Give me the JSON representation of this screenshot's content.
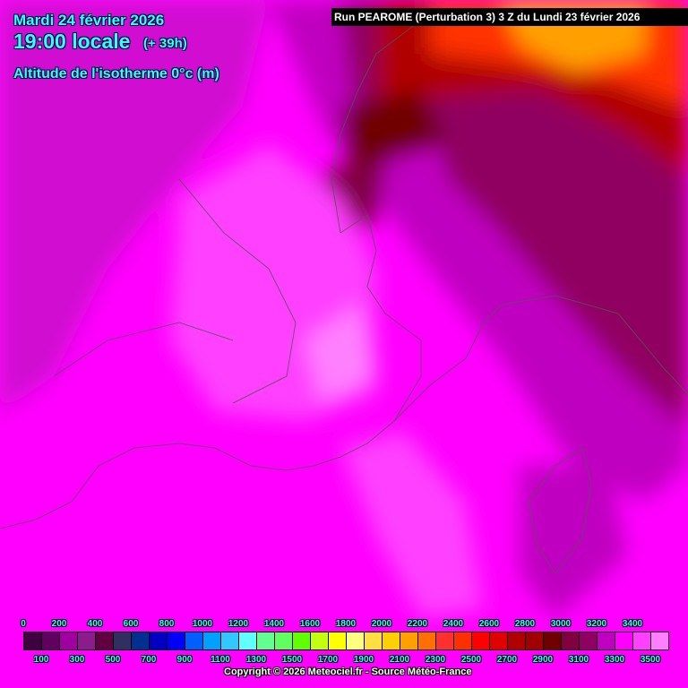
{
  "header": {
    "date": "Mardi 24 février 2026",
    "time": "19:00 locale",
    "lead": "(+ 39h)",
    "parameter": "Altitude de l'isotherme 0°c (m)",
    "run": "Run PEAROME (Perturbation 3) 3 Z du Lundi 23 février 2026"
  },
  "legend": {
    "unit": "m",
    "top_labels": [
      "0",
      "200",
      "400",
      "600",
      "800",
      "1000",
      "1200",
      "1400",
      "1600",
      "1800",
      "2000",
      "2200",
      "2400",
      "2600",
      "2800",
      "3000",
      "3200",
      "3400"
    ],
    "bottom_labels": [
      "100",
      "300",
      "500",
      "700",
      "900",
      "1100",
      "1300",
      "1500",
      "1700",
      "1900",
      "2100",
      "2300",
      "2500",
      "2700",
      "2900",
      "3100",
      "3300",
      "3500"
    ],
    "colors": [
      "#400040",
      "#600060",
      "#a000a0",
      "#8c1c8c",
      "#600040",
      "#303060",
      "#003090",
      "#0000c0",
      "#0000ff",
      "#0060ff",
      "#00a0ff",
      "#30c8ff",
      "#60ffff",
      "#60ff90",
      "#60ff60",
      "#60ff00",
      "#c0ff10",
      "#ffff00",
      "#ffff80",
      "#ffe040",
      "#ffd000",
      "#ffa000",
      "#ff7000",
      "#ff3030",
      "#ff3000",
      "#ff0000",
      "#e00000",
      "#b00000",
      "#a00000",
      "#700000",
      "#800040",
      "#900060",
      "#c000c0",
      "#ff00ff",
      "#ff40ff",
      "#ff80ff"
    ]
  },
  "footer": {
    "copyright": "Copyright © 2026 Meteociel.fr - Source Météo-France"
  }
}
